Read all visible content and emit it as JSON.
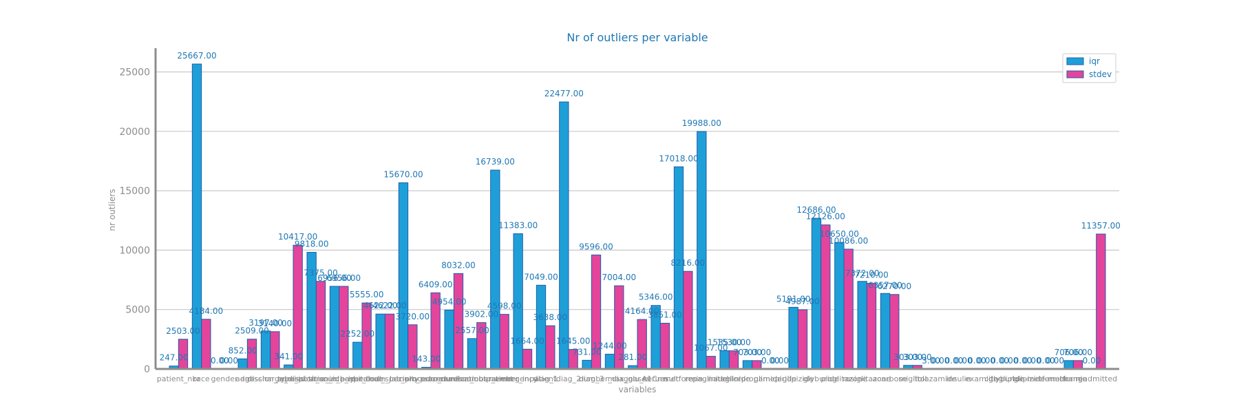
{
  "chart_data": {
    "type": "bar",
    "title": "Nr of outliers per variable",
    "xlabel": "variables",
    "ylabel": "nr outliers",
    "ylim": [
      0,
      27000
    ],
    "yticks": [
      0,
      5000,
      10000,
      15000,
      20000,
      25000
    ],
    "grid": true,
    "legend_position": "top-right",
    "colors": {
      "iqr": "#1f9fd8",
      "stdev": "#e4449b",
      "edge": "#1f5fa8",
      "text": "#1f77b4",
      "muted": "#8c8c8c"
    },
    "categories": [
      "patient_nbr",
      "race",
      "gender",
      "age",
      "admission_type_id",
      "discharge_disposition_id",
      "admission_source_id",
      "time_in_hospital",
      "payer_code",
      "medical_specialty",
      "num_lab_procedures",
      "num_procedures",
      "num_medications",
      "number_outpatient",
      "number_emergency",
      "number_inpatient",
      "diag_1",
      "diag_2",
      "diag_3",
      "number_diagnoses",
      "max_glu_serum",
      "A1Cresult",
      "metformin",
      "repaglinide",
      "nateglinide",
      "chlorpropamide",
      "glimepiride",
      "glipizide",
      "glyburide",
      "pioglitazone",
      "rosiglitazone",
      "acarbose",
      "miglitol",
      "tolazamide",
      "insulin",
      "examide",
      "citoglipton",
      "glyburide-metformin",
      "glipizide-metformin",
      "change",
      "readmitted"
    ],
    "xtick_labels": [
      "patient_nbr",
      "race",
      "gender",
      "age",
      "admission_type_id",
      "discharge_disposition_id",
      "admission_source_id",
      "time_in_hospital",
      "payer_code",
      "medical_specialty",
      "num_lab_procedures",
      "num_procedures",
      "num_medications",
      "number_outpatient",
      "number_emergency",
      "number_inpatient",
      "diag_1",
      "diag_2",
      "diag_3",
      "number_diagnoses",
      "max_glu_serum",
      "A1Cresult",
      "metformin",
      "repaglinide",
      "nateglinide",
      "chlorpropamide",
      "glimepiride",
      "glipizide",
      "glyburide",
      "pioglitazone",
      "rosiglitazone",
      "acarbose",
      "miglitol",
      "tolazamide",
      "insulin",
      "examide",
      "citoglipton",
      "glyburide-metformin",
      "glipizide-metformin",
      "change",
      "readmitted"
    ],
    "series": [
      {
        "name": "iqr",
        "values": [
          247,
          25667,
          0,
          852,
          3197,
          341,
          9818,
          6956,
          2252,
          4622,
          15670,
          143,
          4954,
          2557,
          16739,
          11383,
          7049,
          22477,
          731,
          1244,
          281,
          5346,
          17018,
          19988,
          1535,
          703,
          0,
          5191,
          12686,
          10650,
          7372,
          6357,
          303,
          3,
          0,
          0,
          0,
          0,
          0,
          706,
          0
        ]
      },
      {
        "name": "stdev",
        "values": [
          2503,
          4184,
          0,
          2509,
          3140,
          10417,
          7375,
          6956,
          5555,
          4622,
          3720,
          6409,
          8032,
          3902,
          4598,
          1664,
          3638,
          1645,
          9596,
          7004,
          4164,
          3851,
          8216,
          1067,
          1530,
          703,
          0,
          4987,
          12126,
          10086,
          7210,
          6270,
          303,
          0,
          0,
          0,
          0,
          0,
          0,
          706,
          11357
        ]
      }
    ]
  }
}
